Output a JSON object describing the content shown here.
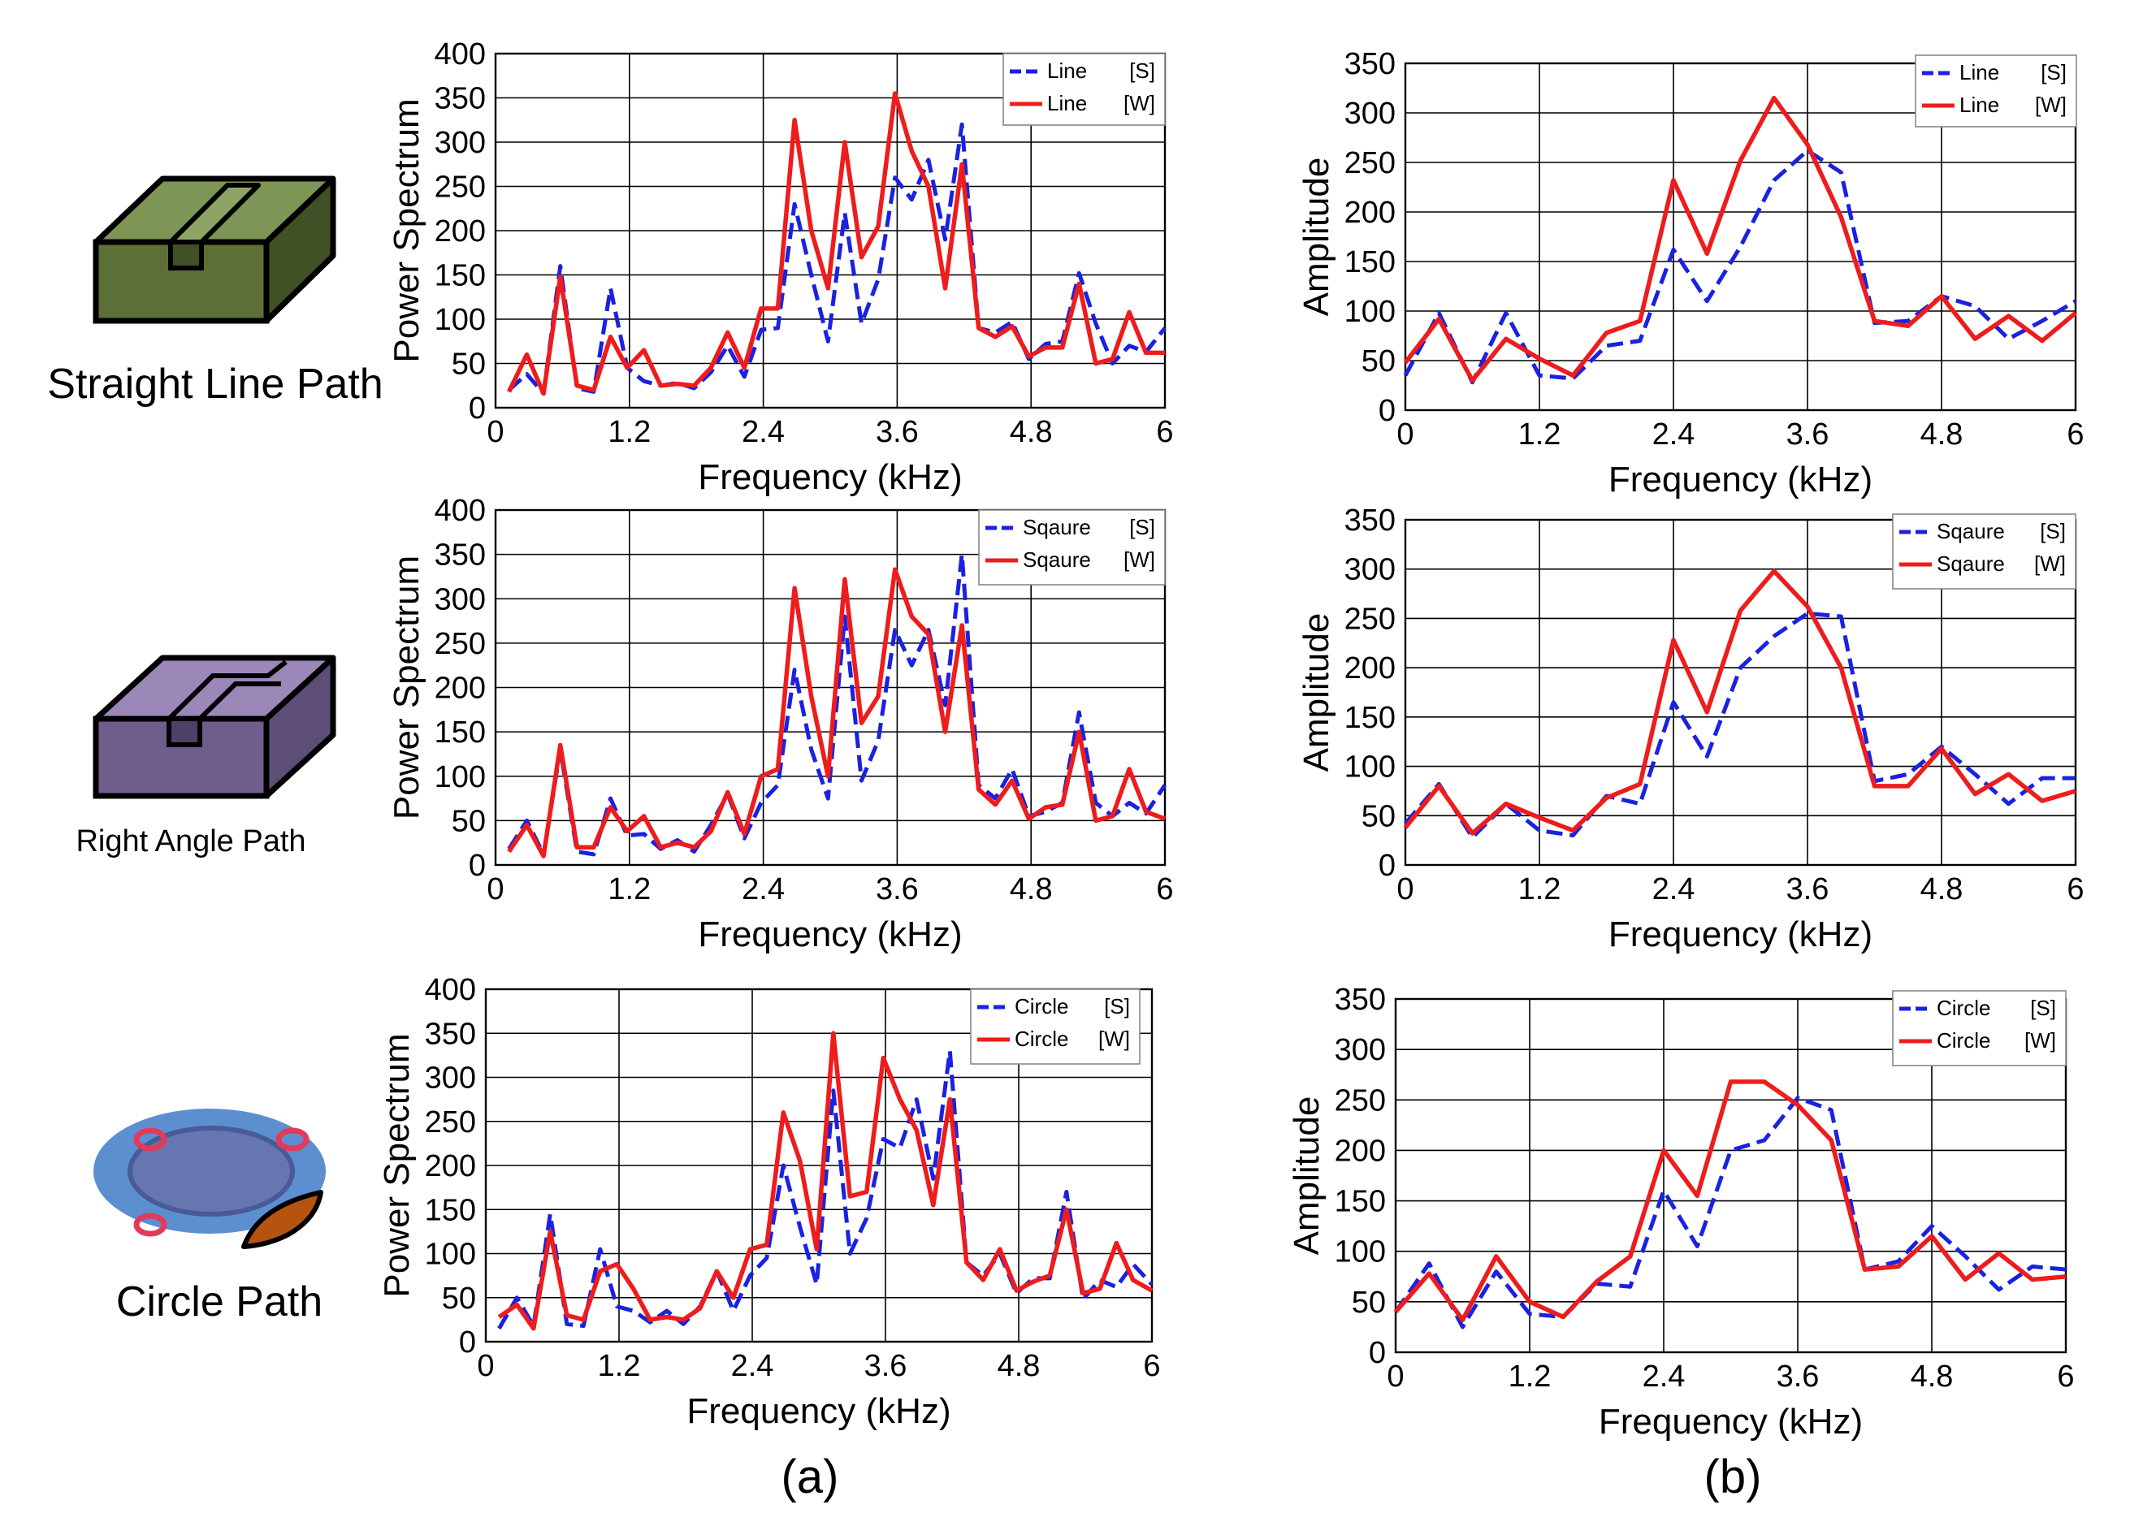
{
  "paths": [
    {
      "label": "Straight Line Path",
      "icon": "straight-line-path-block-icon",
      "color": "#55692f"
    },
    {
      "label": "Right Angle Path",
      "icon": "right-angle-path-block-icon",
      "color": "#7b6796"
    },
    {
      "label": "Circle Path",
      "icon": "circle-path-plate-icon",
      "color": "#5b8fd0"
    }
  ],
  "captions": {
    "a": "(a)",
    "b": "(b)"
  },
  "colors": {
    "s_series": "#1a22e0",
    "w_series": "#ee1c1c"
  },
  "chart_data": [
    {
      "type": "line",
      "panel": "a",
      "row": 0,
      "xlabel": "Frequency (kHz)",
      "ylabel": "Power Spectrum",
      "xlim": [
        0,
        6
      ],
      "ylim": [
        0,
        400
      ],
      "xticks": [
        "0",
        "1.2",
        "2.4",
        "3.6",
        "4.8",
        "6"
      ],
      "yticks": [
        "0",
        "50",
        "100",
        "150",
        "200",
        "250",
        "300",
        "350",
        "400"
      ],
      "legend_position": "top-right",
      "series": [
        {
          "name": "Line",
          "tag": "[S]",
          "style": "dashed",
          "x": [
            0.12,
            0.28,
            0.43,
            0.58,
            0.73,
            0.88,
            1.03,
            1.18,
            1.33,
            1.48,
            1.63,
            1.78,
            1.93,
            2.08,
            2.23,
            2.38,
            2.53,
            2.68,
            2.83,
            2.98,
            3.13,
            3.28,
            3.43,
            3.58,
            3.73,
            3.88,
            4.03,
            4.18,
            4.33,
            4.48,
            4.63,
            4.78,
            4.93,
            5.08,
            5.23,
            5.38,
            5.53,
            5.68,
            5.83,
            6.0
          ],
          "y": [
            20,
            38,
            16,
            160,
            22,
            18,
            135,
            45,
            30,
            25,
            28,
            22,
            40,
            70,
            35,
            88,
            90,
            230,
            150,
            75,
            220,
            95,
            145,
            260,
            235,
            280,
            190,
            320,
            90,
            85,
            97,
            55,
            72,
            75,
            152,
            95,
            50,
            70,
            63,
            90
          ]
        },
        {
          "name": "Line",
          "tag": "[W]",
          "style": "solid",
          "x": [
            0.12,
            0.28,
            0.43,
            0.58,
            0.73,
            0.88,
            1.03,
            1.18,
            1.33,
            1.48,
            1.63,
            1.78,
            1.93,
            2.08,
            2.23,
            2.38,
            2.53,
            2.68,
            2.83,
            2.98,
            3.13,
            3.28,
            3.43,
            3.58,
            3.73,
            3.88,
            4.03,
            4.18,
            4.33,
            4.48,
            4.63,
            4.78,
            4.93,
            5.08,
            5.23,
            5.38,
            5.53,
            5.68,
            5.83,
            6.0
          ],
          "y": [
            18,
            60,
            16,
            148,
            25,
            20,
            80,
            45,
            65,
            25,
            27,
            25,
            45,
            85,
            45,
            112,
            112,
            325,
            200,
            135,
            300,
            170,
            205,
            355,
            290,
            250,
            135,
            275,
            90,
            80,
            92,
            58,
            68,
            68,
            140,
            50,
            55,
            108,
            62,
            62
          ]
        }
      ]
    },
    {
      "type": "line",
      "panel": "b",
      "row": 0,
      "xlabel": "Frequency (kHz)",
      "ylabel": "Amplitude",
      "xlim": [
        0,
        6
      ],
      "ylim": [
        0,
        350
      ],
      "xticks": [
        "0",
        "1.2",
        "2.4",
        "3.6",
        "4.8",
        "6"
      ],
      "yticks": [
        "0",
        "50",
        "100",
        "150",
        "200",
        "250",
        "300",
        "350"
      ],
      "legend_position": "top-right",
      "series": [
        {
          "name": "Line",
          "tag": "[S]",
          "style": "dashed",
          "x": [
            0.0,
            0.3,
            0.6,
            0.9,
            1.2,
            1.5,
            1.8,
            2.1,
            2.4,
            2.7,
            3.0,
            3.3,
            3.6,
            3.9,
            4.2,
            4.5,
            4.8,
            5.1,
            5.4,
            5.7,
            6.0
          ],
          "y": [
            35,
            98,
            28,
            98,
            35,
            32,
            65,
            70,
            162,
            110,
            165,
            232,
            262,
            240,
            88,
            90,
            115,
            105,
            72,
            90,
            110
          ]
        },
        {
          "name": "Line",
          "tag": "[W]",
          "style": "solid",
          "x": [
            0.0,
            0.3,
            0.6,
            0.9,
            1.2,
            1.5,
            1.8,
            2.1,
            2.4,
            2.7,
            3.0,
            3.3,
            3.6,
            3.9,
            4.2,
            4.5,
            4.8,
            5.1,
            5.4,
            5.7,
            6.0
          ],
          "y": [
            48,
            92,
            30,
            72,
            52,
            35,
            78,
            90,
            232,
            158,
            252,
            315,
            268,
            195,
            90,
            85,
            115,
            72,
            95,
            70,
            98
          ]
        }
      ]
    },
    {
      "type": "line",
      "panel": "a",
      "row": 1,
      "xlabel": "Frequency (kHz)",
      "ylabel": "Power Spectrum",
      "xlim": [
        0,
        6
      ],
      "ylim": [
        0,
        400
      ],
      "xticks": [
        "0",
        "1.2",
        "2.4",
        "3.6",
        "4.8",
        "6"
      ],
      "yticks": [
        "0",
        "50",
        "100",
        "150",
        "200",
        "250",
        "300",
        "350",
        "400"
      ],
      "legend_position": "top-right",
      "series": [
        {
          "name": "Sqaure",
          "tag": "[S]",
          "style": "dashed",
          "x": [
            0.12,
            0.28,
            0.43,
            0.58,
            0.73,
            0.88,
            1.03,
            1.18,
            1.33,
            1.48,
            1.63,
            1.78,
            1.93,
            2.08,
            2.23,
            2.38,
            2.53,
            2.68,
            2.83,
            2.98,
            3.13,
            3.28,
            3.43,
            3.58,
            3.73,
            3.88,
            4.03,
            4.18,
            4.33,
            4.48,
            4.63,
            4.78,
            4.93,
            5.08,
            5.23,
            5.38,
            5.53,
            5.68,
            5.83,
            6.0
          ],
          "y": [
            18,
            50,
            12,
            130,
            15,
            12,
            75,
            33,
            35,
            18,
            28,
            15,
            45,
            80,
            30,
            70,
            90,
            220,
            130,
            75,
            280,
            95,
            140,
            265,
            225,
            265,
            180,
            350,
            90,
            75,
            108,
            55,
            60,
            70,
            172,
            70,
            55,
            70,
            58,
            90
          ]
        },
        {
          "name": "Sqaure",
          "tag": "[W]",
          "style": "solid",
          "x": [
            0.12,
            0.28,
            0.43,
            0.58,
            0.73,
            0.88,
            1.03,
            1.18,
            1.33,
            1.48,
            1.63,
            1.78,
            1.93,
            2.08,
            2.23,
            2.38,
            2.53,
            2.68,
            2.83,
            2.98,
            3.13,
            3.28,
            3.43,
            3.58,
            3.73,
            3.88,
            4.03,
            4.18,
            4.33,
            4.48,
            4.63,
            4.78,
            4.93,
            5.08,
            5.23,
            5.38,
            5.53,
            5.68,
            5.83,
            6.0
          ],
          "y": [
            15,
            45,
            10,
            135,
            20,
            20,
            65,
            38,
            55,
            20,
            25,
            20,
            38,
            82,
            35,
            100,
            108,
            312,
            190,
            100,
            322,
            160,
            190,
            333,
            280,
            260,
            150,
            270,
            85,
            68,
            95,
            52,
            65,
            68,
            150,
            50,
            55,
            108,
            60,
            52
          ]
        }
      ]
    },
    {
      "type": "line",
      "panel": "b",
      "row": 1,
      "xlabel": "Frequency (kHz)",
      "ylabel": "Amplitude",
      "xlim": [
        0,
        6
      ],
      "ylim": [
        0,
        350
      ],
      "xticks": [
        "0",
        "1.2",
        "2.4",
        "3.6",
        "4.8",
        "6"
      ],
      "yticks": [
        "0",
        "50",
        "100",
        "150",
        "200",
        "250",
        "300",
        "350"
      ],
      "legend_position": "top-right",
      "series": [
        {
          "name": "Sqaure",
          "tag": "[S]",
          "style": "dashed",
          "x": [
            0.0,
            0.3,
            0.6,
            0.9,
            1.2,
            1.5,
            1.8,
            2.1,
            2.4,
            2.7,
            3.0,
            3.3,
            3.6,
            3.9,
            4.2,
            4.5,
            4.8,
            5.1,
            5.4,
            5.7,
            6.0
          ],
          "y": [
            42,
            82,
            28,
            62,
            35,
            30,
            70,
            62,
            165,
            110,
            200,
            232,
            255,
            252,
            85,
            92,
            120,
            92,
            62,
            88,
            88
          ]
        },
        {
          "name": "Sqaure",
          "tag": "[W]",
          "style": "solid",
          "x": [
            0.0,
            0.3,
            0.6,
            0.9,
            1.2,
            1.5,
            1.8,
            2.1,
            2.4,
            2.7,
            3.0,
            3.3,
            3.6,
            3.9,
            4.2,
            4.5,
            4.8,
            5.1,
            5.4,
            5.7,
            6.0
          ],
          "y": [
            38,
            80,
            32,
            62,
            48,
            35,
            68,
            82,
            228,
            155,
            258,
            298,
            262,
            200,
            80,
            80,
            118,
            72,
            92,
            65,
            75
          ]
        }
      ]
    },
    {
      "type": "line",
      "panel": "a",
      "row": 2,
      "xlabel": "Frequency (kHz)",
      "ylabel": "Power Spectrum",
      "xlim": [
        0,
        6
      ],
      "ylim": [
        0,
        400
      ],
      "xticks": [
        "0",
        "1.2",
        "2.4",
        "3.6",
        "4.8",
        "6"
      ],
      "yticks": [
        "0",
        "50",
        "100",
        "150",
        "200",
        "250",
        "300",
        "350",
        "400"
      ],
      "legend_position": "top-right",
      "series": [
        {
          "name": "Circle",
          "tag": "[S]",
          "style": "dashed",
          "x": [
            0.12,
            0.28,
            0.43,
            0.58,
            0.73,
            0.88,
            1.03,
            1.18,
            1.33,
            1.48,
            1.63,
            1.78,
            1.93,
            2.08,
            2.23,
            2.38,
            2.53,
            2.68,
            2.83,
            2.98,
            3.13,
            3.28,
            3.43,
            3.58,
            3.73,
            3.88,
            4.03,
            4.18,
            4.33,
            4.48,
            4.63,
            4.78,
            4.93,
            5.08,
            5.23,
            5.38,
            5.53,
            5.68,
            5.83,
            6.0
          ],
          "y": [
            15,
            50,
            18,
            145,
            20,
            18,
            105,
            40,
            35,
            22,
            35,
            20,
            40,
            80,
            35,
            75,
            95,
            200,
            130,
            65,
            285,
            100,
            140,
            230,
            220,
            275,
            185,
            330,
            90,
            75,
            100,
            55,
            72,
            72,
            170,
            48,
            70,
            62,
            88,
            65
          ]
        },
        {
          "name": "Circle",
          "tag": "[W]",
          "style": "solid",
          "x": [
            0.12,
            0.28,
            0.43,
            0.58,
            0.73,
            0.88,
            1.03,
            1.18,
            1.33,
            1.48,
            1.63,
            1.78,
            1.93,
            2.08,
            2.23,
            2.38,
            2.53,
            2.68,
            2.83,
            2.98,
            3.13,
            3.28,
            3.43,
            3.58,
            3.73,
            3.88,
            4.03,
            4.18,
            4.33,
            4.48,
            4.63,
            4.78,
            4.93,
            5.08,
            5.23,
            5.38,
            5.53,
            5.68,
            5.83,
            6.0
          ],
          "y": [
            28,
            42,
            15,
            125,
            30,
            25,
            80,
            88,
            60,
            25,
            28,
            25,
            38,
            80,
            50,
            105,
            110,
            260,
            205,
            105,
            350,
            165,
            170,
            322,
            275,
            240,
            155,
            275,
            90,
            70,
            105,
            58,
            68,
            75,
            150,
            55,
            60,
            112,
            70,
            58
          ]
        }
      ]
    },
    {
      "type": "line",
      "panel": "b",
      "row": 2,
      "xlabel": "Frequency (kHz)",
      "ylabel": "Amplitude",
      "xlim": [
        0,
        6
      ],
      "ylim": [
        0,
        350
      ],
      "xticks": [
        "0",
        "1.2",
        "2.4",
        "3.6",
        "4.8",
        "6"
      ],
      "yticks": [
        "0",
        "50",
        "100",
        "150",
        "200",
        "250",
        "300",
        "350"
      ],
      "legend_position": "top-right",
      "series": [
        {
          "name": "Circle",
          "tag": "[S]",
          "style": "dashed",
          "x": [
            0.0,
            0.3,
            0.6,
            0.9,
            1.2,
            1.5,
            1.8,
            2.1,
            2.4,
            2.7,
            3.0,
            3.3,
            3.6,
            3.9,
            4.2,
            4.5,
            4.8,
            5.1,
            5.4,
            5.7,
            6.0
          ],
          "y": [
            40,
            88,
            25,
            80,
            38,
            35,
            68,
            65,
            160,
            105,
            200,
            210,
            252,
            240,
            82,
            90,
            125,
            95,
            62,
            85,
            82
          ]
        },
        {
          "name": "Circle",
          "tag": "[W]",
          "style": "solid",
          "x": [
            0.0,
            0.3,
            0.6,
            0.9,
            1.2,
            1.5,
            1.8,
            2.1,
            2.4,
            2.7,
            3.0,
            3.3,
            3.6,
            3.9,
            4.2,
            4.5,
            4.8,
            5.1,
            5.4,
            5.7,
            6.0
          ],
          "y": [
            40,
            78,
            32,
            95,
            50,
            35,
            70,
            95,
            200,
            155,
            268,
            268,
            245,
            210,
            82,
            85,
            115,
            72,
            98,
            72,
            75
          ]
        }
      ]
    }
  ]
}
